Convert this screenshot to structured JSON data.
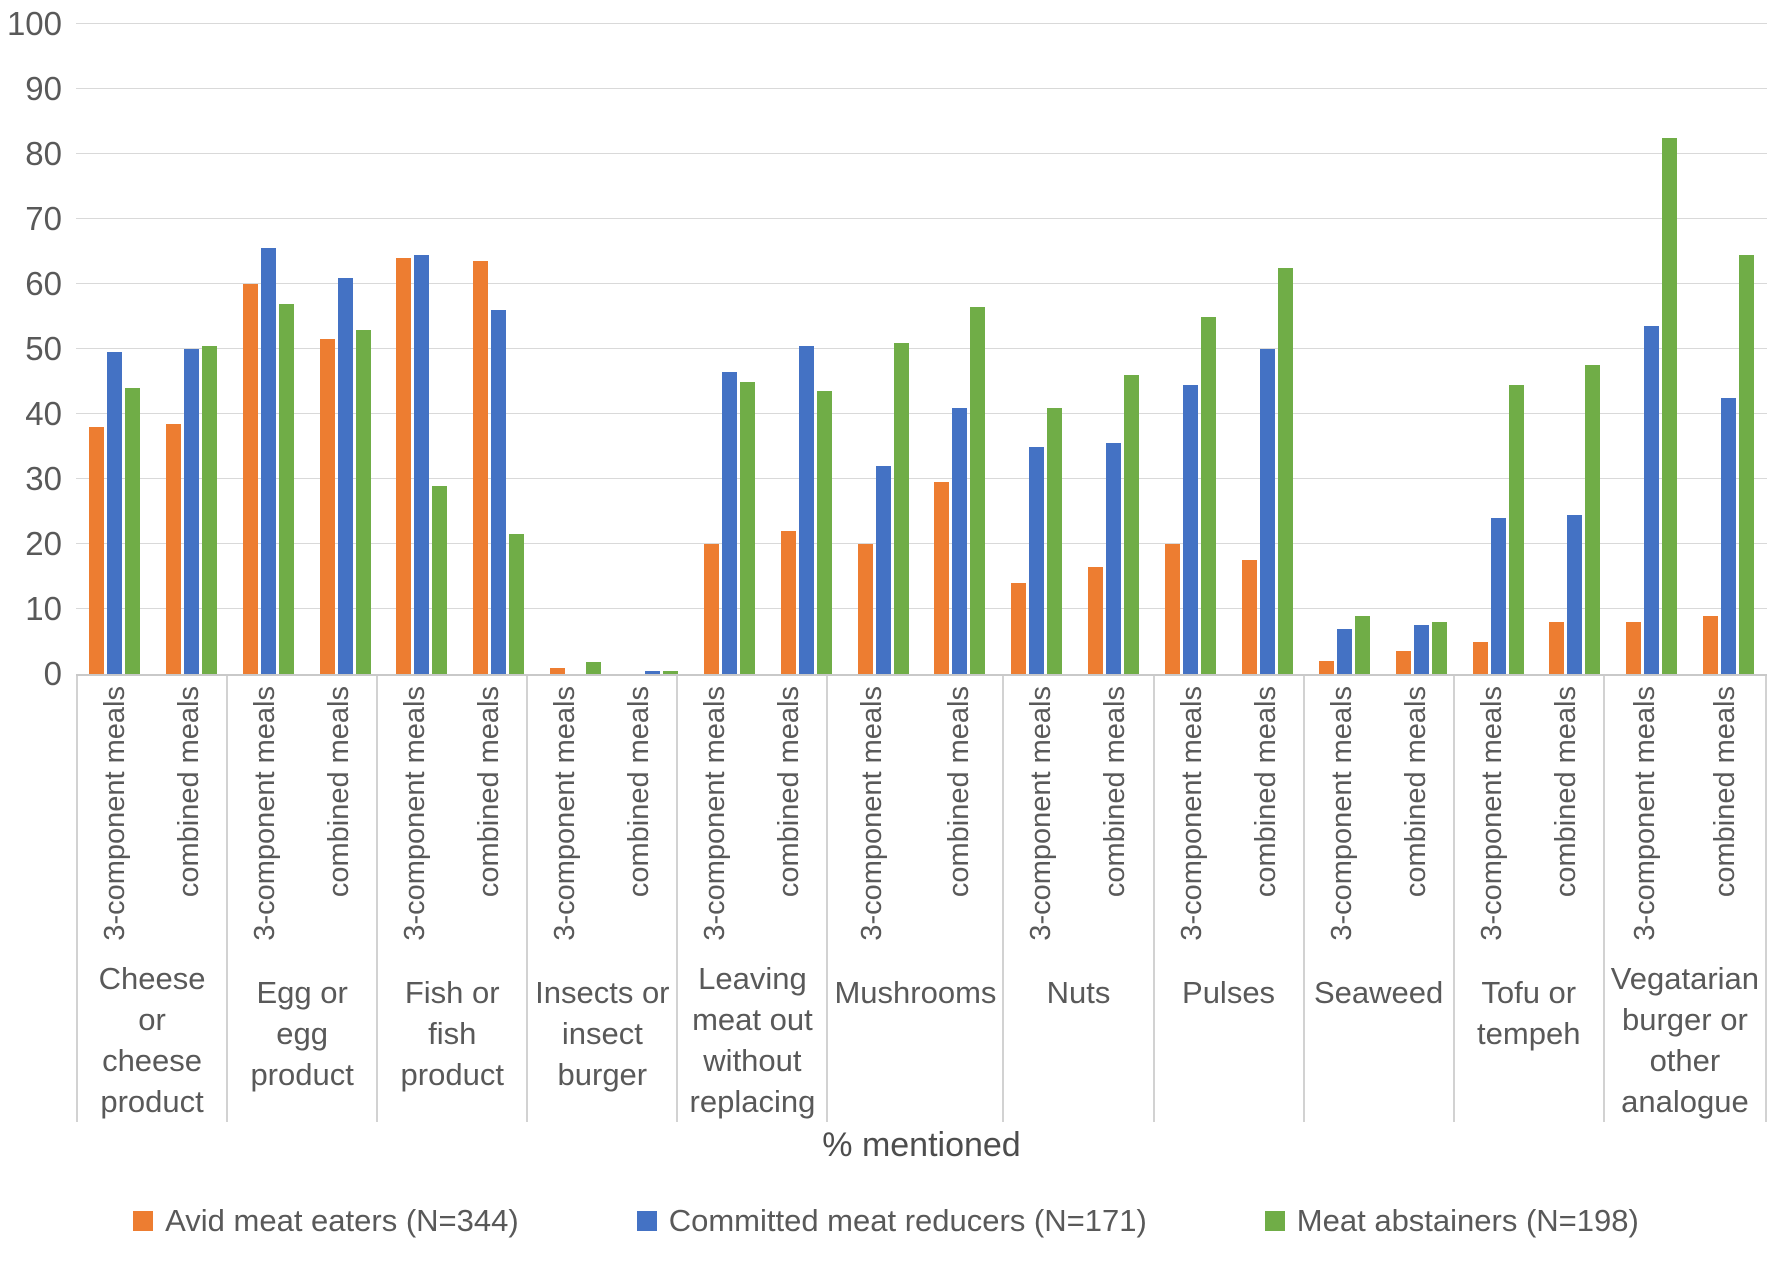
{
  "chart_data": {
    "type": "bar",
    "title": "",
    "xlabel": "% mentioned",
    "ylabel": "",
    "ylim": [
      0,
      100
    ],
    "yticks": [
      0,
      10,
      20,
      30,
      40,
      50,
      60,
      70,
      80,
      90,
      100
    ],
    "grid": true,
    "legend_position": "bottom",
    "axis_text_color": "#595959",
    "gridline_color": "#d9d9d9",
    "categories": [
      "Cheese or cheese product",
      "Egg or egg product",
      "Fish or fish product",
      "Insects or insect burger",
      "Leaving meat out without replacing",
      "Mushrooms",
      "Nuts",
      "Pulses",
      "Seaweed",
      "Tofu or tempeh",
      "Vegatarian burger or other analogue"
    ],
    "subgroups": [
      "3-component meals",
      "combined meals"
    ],
    "series": [
      {
        "name": "Avid meat eaters (N=344)",
        "color": "#ED7D31",
        "values_3_component": [
          38,
          60,
          64,
          1,
          20,
          20,
          14,
          20,
          2,
          5,
          8
        ],
        "values_combined": [
          38.5,
          51.5,
          63.5,
          0,
          22,
          29.5,
          16.5,
          17.5,
          3.5,
          8,
          9
        ]
      },
      {
        "name": "Committed meat reducers (N=171)",
        "color": "#4472C4",
        "values_3_component": [
          49.5,
          65.5,
          64.5,
          0,
          46.5,
          32,
          35,
          44.5,
          7,
          24,
          53.5
        ],
        "values_combined": [
          50,
          61,
          56,
          0.5,
          50.5,
          41,
          35.5,
          50,
          7.5,
          24.5,
          42.5
        ]
      },
      {
        "name": "Meat abstainers (N=198)",
        "color": "#70AD47",
        "values_3_component": [
          44,
          57,
          29,
          1.8,
          45,
          51,
          41,
          55,
          9,
          44.5,
          82.5
        ],
        "values_combined": [
          50.5,
          53,
          21.5,
          0.5,
          43.5,
          56.5,
          46,
          62.5,
          8,
          47.5,
          64.5
        ]
      }
    ]
  }
}
